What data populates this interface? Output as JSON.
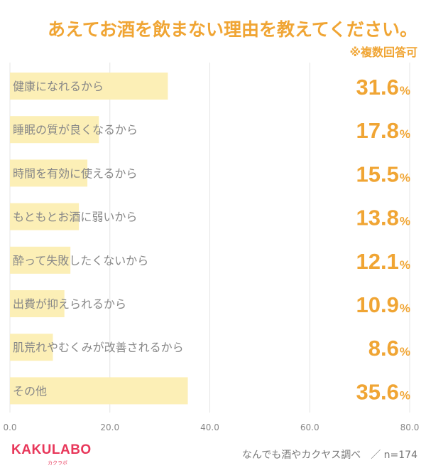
{
  "title": "あえてお酒を飲まない理由を教えてください。",
  "note": "※複数回答可",
  "chart_data": {
    "type": "bar",
    "orientation": "horizontal",
    "categories": [
      "健康になれるから",
      "睡眠の質が良くなるから",
      "時間を有効に使えるから",
      "もともとお酒に弱いから",
      "酔って失敗したくないから",
      "出費が抑えられるから",
      "肌荒れやむくみが改善されるから",
      "その他"
    ],
    "values": [
      31.6,
      17.8,
      15.5,
      13.8,
      12.1,
      10.9,
      8.6,
      35.6
    ],
    "value_labels": [
      "31.6",
      "17.8",
      "15.5",
      "13.8",
      "12.1",
      "10.9",
      "8.6",
      "35.6"
    ],
    "value_unit": "%",
    "xlim": [
      0,
      80
    ],
    "xticks": [
      "0.0",
      "20.0",
      "40.0",
      "60.0",
      "80.0"
    ],
    "xtick_values": [
      0,
      20,
      40,
      60,
      80
    ],
    "grid": true,
    "colors": {
      "bar": "#fcefb6",
      "accent": "#f0a534",
      "label": "#888888",
      "grid": "#e4e4e4"
    }
  },
  "footer": {
    "logo": "KAKULABO",
    "logo_sub": "カクラボ",
    "source": "なんでも酒やカクヤス調べ　／ n=174"
  }
}
